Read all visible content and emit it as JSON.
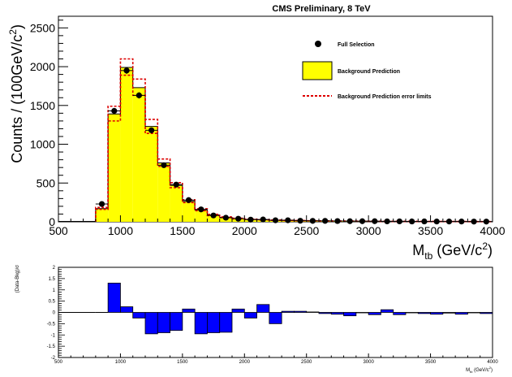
{
  "page": {
    "title": "CMS Preliminary, 8 TeV"
  },
  "legend": {
    "placement": "top-right",
    "items": [
      {
        "label": "Full Selection",
        "style": "marker"
      },
      {
        "label": "Background Prediction",
        "style": "yellow-fill"
      },
      {
        "label": "Background Prediction error limits",
        "style": "red-dashed"
      }
    ]
  },
  "colors": {
    "background_fill": "#ffff00",
    "error_limits": "#dd0000",
    "ratio_fill": "#0000ff",
    "data_marker": "#000000"
  },
  "chart_data": [
    {
      "type": "bar",
      "title": "CMS Preliminary, 8 TeV",
      "xlabel": "M_tb (GeV/c^2)",
      "ylabel": "Counts / (100GeV/c^2)",
      "xlim": [
        500,
        4000
      ],
      "ylim": [
        0,
        2650
      ],
      "x_ticks": [
        "500",
        "1000",
        "1500",
        "2000",
        "2500",
        "3000",
        "3500",
        "4000"
      ],
      "y_ticks": [
        "0",
        "500",
        "1000",
        "1500",
        "2000",
        "2500"
      ],
      "grid": false,
      "bin_width": 100,
      "bin_edges_start": 800,
      "series": [
        {
          "name": "Background Prediction",
          "values": [
            170,
            1390,
            1990,
            1730,
            1230,
            760,
            470,
            265,
            155,
            88,
            58,
            42,
            32,
            26,
            21,
            18,
            15,
            13,
            11,
            10,
            9,
            8,
            7,
            6,
            6,
            5,
            5,
            4,
            4,
            4,
            3,
            3
          ]
        },
        {
          "name": "Background Prediction error limits (upper)",
          "values": [
            185,
            1490,
            2100,
            1840,
            1320,
            810,
            505,
            285,
            168,
            96,
            63,
            46,
            35,
            28,
            23,
            19,
            16,
            14,
            12,
            11,
            10,
            9,
            8,
            7,
            6,
            6,
            5,
            5,
            4,
            4,
            4,
            3
          ]
        },
        {
          "name": "Background Prediction error limits (lower)",
          "values": [
            160,
            1300,
            1890,
            1630,
            1140,
            715,
            440,
            248,
            143,
            81,
            54,
            39,
            29,
            24,
            19,
            16,
            14,
            12,
            10,
            9,
            8,
            7,
            6,
            5,
            5,
            4,
            4,
            3,
            3,
            3,
            2,
            2
          ]
        },
        {
          "name": "Full Selection",
          "x": [
            850,
            950,
            1050,
            1150,
            1250,
            1350,
            1450,
            1550,
            1650,
            1750,
            1850,
            1950,
            2050,
            2150,
            2250,
            2350,
            2450,
            2550,
            2650,
            2750,
            2850,
            2950,
            3050,
            3150,
            3250,
            3350,
            3450,
            3550,
            3650,
            3750,
            3850,
            3950
          ],
          "values": [
            230,
            1430,
            1950,
            1630,
            1180,
            730,
            480,
            280,
            160,
            82,
            53,
            40,
            28,
            30,
            20,
            20,
            14,
            12,
            12,
            10,
            8,
            8,
            8,
            6,
            6,
            5,
            5,
            4,
            4,
            4,
            3,
            3
          ],
          "errors": [
            15,
            38,
            44,
            40,
            34,
            27,
            22,
            17,
            13,
            9,
            7,
            6,
            5,
            5,
            4,
            4,
            4,
            3,
            3,
            3,
            3,
            3,
            3,
            2,
            2,
            2,
            2,
            2,
            2,
            2,
            2,
            2
          ]
        }
      ]
    },
    {
      "type": "bar",
      "xlabel": "M_tb (GeV/c^2)",
      "ylabel": "(Data-Bkg)/σ",
      "xlim": [
        500,
        4000
      ],
      "ylim": [
        -2,
        2
      ],
      "x_ticks": [
        "500",
        "1000",
        "1500",
        "2000",
        "2500",
        "3000",
        "3500",
        "4000"
      ],
      "y_ticks": [
        "-2",
        "-1.5",
        "-1",
        "-0.5",
        "0",
        "0.5",
        "1",
        "1.5",
        "2"
      ],
      "grid": false,
      "bin_width": 100,
      "bin_edges_start": 800,
      "series": [
        {
          "name": "(Data-Bkg)/σ",
          "values": [
            0.0,
            1.3,
            0.25,
            -0.25,
            -0.95,
            -0.9,
            -0.8,
            0.15,
            -0.95,
            -0.9,
            -0.88,
            0.15,
            -0.25,
            0.35,
            -0.5,
            0.05,
            0.05,
            0.02,
            -0.05,
            -0.08,
            -0.15,
            -0.02,
            -0.1,
            0.12,
            -0.1,
            -0.02,
            -0.05,
            -0.08,
            -0.03,
            -0.08,
            -0.02,
            -0.05
          ]
        }
      ]
    }
  ]
}
